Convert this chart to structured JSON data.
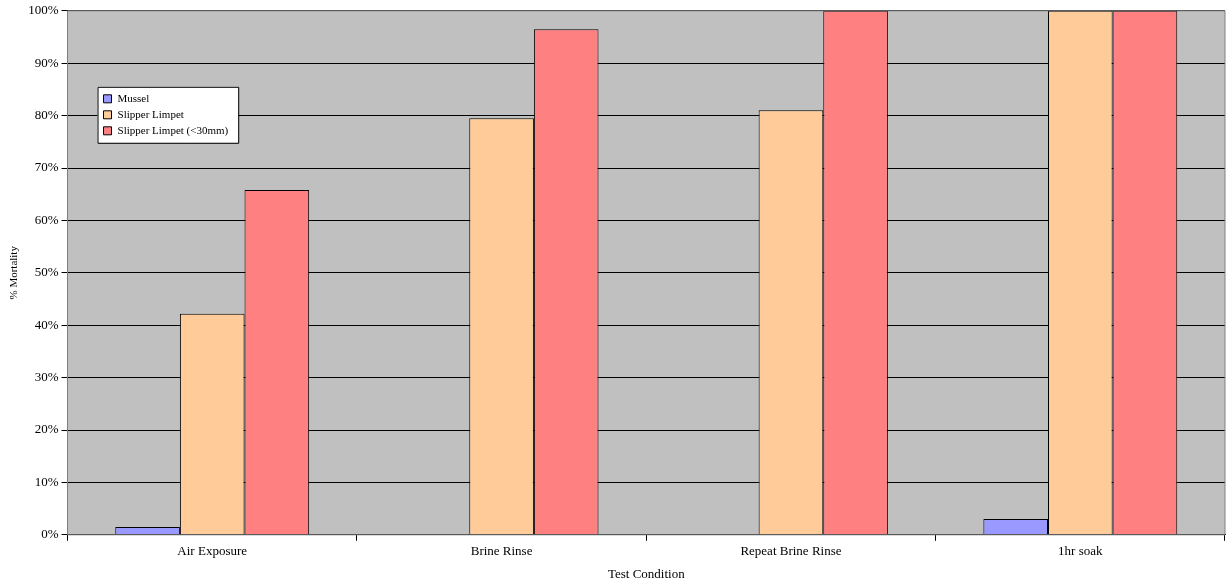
{
  "chart_data": {
    "type": "bar",
    "xlabel": "Test Condition",
    "ylabel": "% Mortality",
    "categories": [
      "Air Exposure",
      "Brine Rinse",
      "Repeat Brine Rinse",
      "1hr soak"
    ],
    "series": [
      {
        "name": "Mussel",
        "color": "#9999ff",
        "values": [
          1.5,
          0,
          0,
          3
        ]
      },
      {
        "name": "Slipper Limpet",
        "color": "#ffcc99",
        "values": [
          42.2,
          79.5,
          81,
          100
        ]
      },
      {
        "name": "Slipper Limpet (<30mm)",
        "color": "#ff8080",
        "values": [
          65.8,
          96.5,
          100,
          100
        ]
      }
    ],
    "ylim": [
      0,
      100
    ],
    "yticks": [
      {
        "value": 0,
        "label": "0%"
      },
      {
        "value": 10,
        "label": "10%"
      },
      {
        "value": 20,
        "label": "20%"
      },
      {
        "value": 30,
        "label": "30%"
      },
      {
        "value": 40,
        "label": "40%"
      },
      {
        "value": 50,
        "label": "50%"
      },
      {
        "value": 60,
        "label": "60%"
      },
      {
        "value": 70,
        "label": "70%"
      },
      {
        "value": 80,
        "label": "80%"
      },
      {
        "value": 90,
        "label": "90%"
      },
      {
        "value": 100,
        "label": "100%"
      }
    ],
    "grid": "y",
    "legend": "top left"
  }
}
